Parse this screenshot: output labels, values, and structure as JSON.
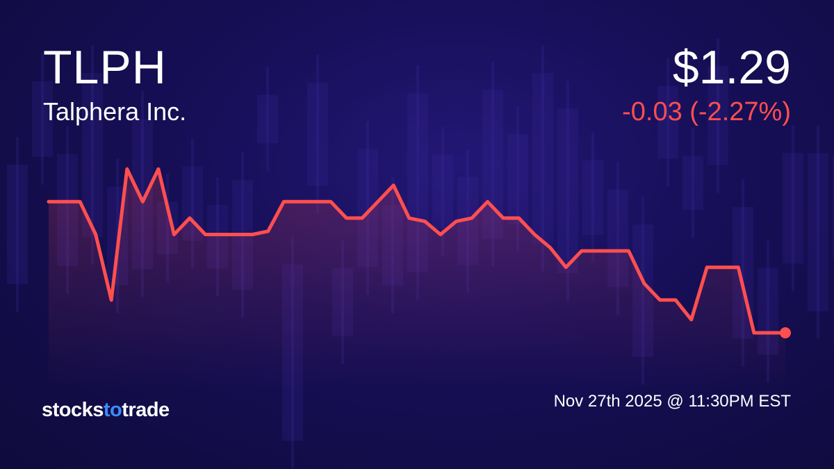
{
  "header": {
    "ticker": "TLPH",
    "company": "Talphera Inc.",
    "price": "$1.29",
    "change": "-0.03 (-2.27%)"
  },
  "footer": {
    "logo_parts": [
      "stocks",
      "to",
      "trade"
    ],
    "timestamp": "Nov 27th 2025 @ 11:30PM EST"
  },
  "colors": {
    "line": "#ff4f4f",
    "background": "#120d45",
    "logo_accent": "#3d8bff"
  },
  "chart_data": {
    "type": "line",
    "title": "",
    "xlabel": "",
    "ylabel": "",
    "axes_visible": false,
    "grid": false,
    "fill_under_line": true,
    "end_marker": true,
    "values": [
      1.33,
      1.33,
      1.33,
      1.32,
      1.3,
      1.34,
      1.33,
      1.34,
      1.32,
      1.325,
      1.32,
      1.32,
      1.32,
      1.32,
      1.321,
      1.33,
      1.33,
      1.33,
      1.33,
      1.325,
      1.325,
      1.33,
      1.335,
      1.325,
      1.324,
      1.32,
      1.324,
      1.325,
      1.33,
      1.325,
      1.325,
      1.32,
      1.316,
      1.31,
      1.315,
      1.315,
      1.315,
      1.315,
      1.305,
      1.3,
      1.3,
      1.294,
      1.31,
      1.31,
      1.31,
      1.29,
      1.29,
      1.29
    ]
  }
}
